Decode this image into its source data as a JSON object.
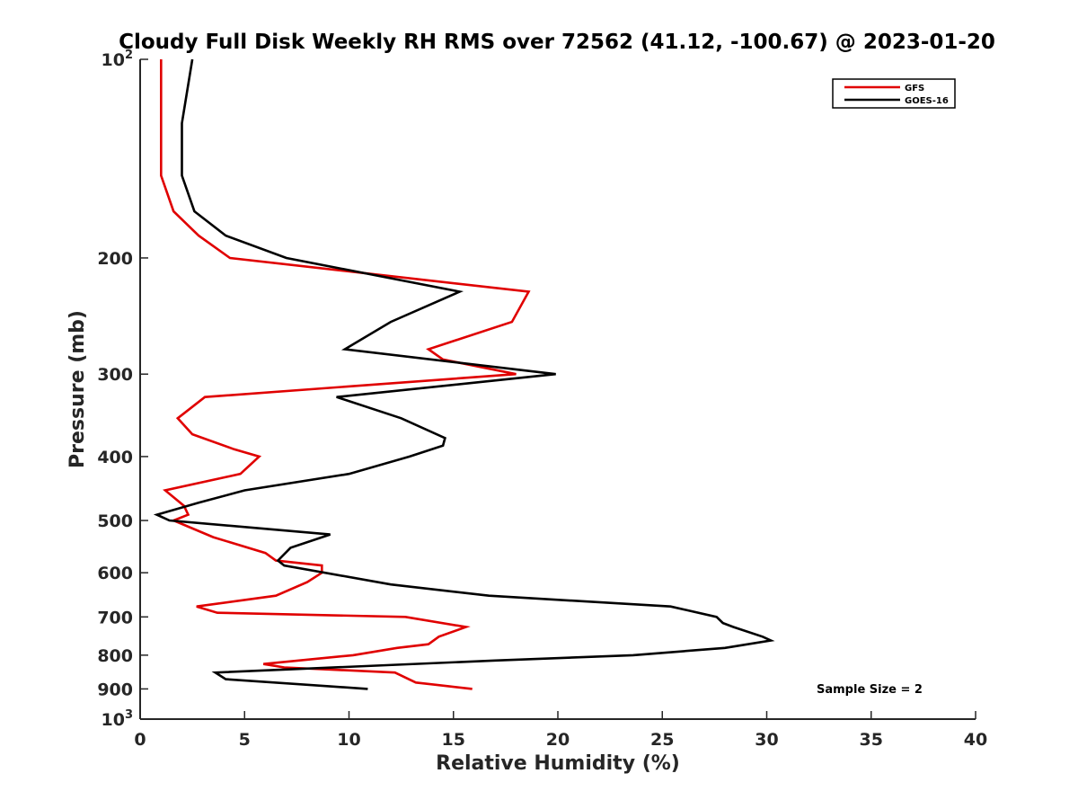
{
  "chart_data": {
    "type": "line",
    "title": "Cloudy Full Disk Weekly RH RMS over 72562 (41.12, -100.67) @ 2023-01-20",
    "xlabel": "Relative Humidity (%)",
    "ylabel": "Pressure (mb)",
    "xlim": [
      0,
      40
    ],
    "ylim": [
      100,
      1000
    ],
    "yscale": "log",
    "y_reversed": true,
    "x_ticks": [
      0,
      5,
      10,
      15,
      20,
      25,
      30,
      35,
      40
    ],
    "x_tick_labels": [
      "0",
      "5",
      "10",
      "15",
      "20",
      "25",
      "30",
      "35",
      "40"
    ],
    "y_ticks": [
      {
        "value": 100,
        "base": "10",
        "exp": "2"
      },
      {
        "value": 200,
        "base": "200",
        "exp": ""
      },
      {
        "value": 300,
        "base": "300",
        "exp": ""
      },
      {
        "value": 400,
        "base": "400",
        "exp": ""
      },
      {
        "value": 500,
        "base": "500",
        "exp": ""
      },
      {
        "value": 600,
        "base": "600",
        "exp": ""
      },
      {
        "value": 700,
        "base": "700",
        "exp": ""
      },
      {
        "value": 800,
        "base": "800",
        "exp": ""
      },
      {
        "value": 900,
        "base": "900",
        "exp": ""
      },
      {
        "value": 1000,
        "base": "10",
        "exp": "3"
      }
    ],
    "grid": false,
    "legend_position": "top-right",
    "series": [
      {
        "name": "GFS",
        "color": "#e00000",
        "points": [
          [
            1.0,
            100
          ],
          [
            1.0,
            125
          ],
          [
            1.0,
            150
          ],
          [
            1.6,
            170
          ],
          [
            2.8,
            185
          ],
          [
            4.3,
            200
          ],
          [
            18.6,
            225
          ],
          [
            17.8,
            250
          ],
          [
            13.8,
            275
          ],
          [
            14.5,
            285
          ],
          [
            18.0,
            300
          ],
          [
            3.1,
            325
          ],
          [
            1.8,
            350
          ],
          [
            2.5,
            370
          ],
          [
            4.5,
            390
          ],
          [
            5.7,
            400
          ],
          [
            4.8,
            425
          ],
          [
            1.2,
            450
          ],
          [
            2.1,
            475
          ],
          [
            2.3,
            490
          ],
          [
            1.6,
            500
          ],
          [
            3.5,
            530
          ],
          [
            6.0,
            560
          ],
          [
            6.5,
            575
          ],
          [
            8.7,
            585
          ],
          [
            8.7,
            600
          ],
          [
            8.0,
            620
          ],
          [
            6.5,
            650
          ],
          [
            2.7,
            675
          ],
          [
            3.7,
            690
          ],
          [
            12.7,
            700
          ],
          [
            15.6,
            725
          ],
          [
            14.3,
            750
          ],
          [
            13.8,
            770
          ],
          [
            12.3,
            780
          ],
          [
            10.2,
            800
          ],
          [
            5.9,
            825
          ],
          [
            6.9,
            835
          ],
          [
            12.2,
            850
          ],
          [
            13.2,
            880
          ],
          [
            15.9,
            900
          ]
        ]
      },
      {
        "name": "GOES-16",
        "color": "#000000",
        "points": [
          [
            2.5,
            100
          ],
          [
            2.0,
            125
          ],
          [
            2.0,
            150
          ],
          [
            2.6,
            170
          ],
          [
            4.1,
            185
          ],
          [
            7.0,
            200
          ],
          [
            15.3,
            225
          ],
          [
            12.0,
            250
          ],
          [
            9.8,
            275
          ],
          [
            19.9,
            300
          ],
          [
            9.4,
            325
          ],
          [
            12.5,
            350
          ],
          [
            14.6,
            375
          ],
          [
            14.5,
            385
          ],
          [
            12.9,
            400
          ],
          [
            10.0,
            425
          ],
          [
            5.0,
            450
          ],
          [
            2.8,
            470
          ],
          [
            0.8,
            490
          ],
          [
            1.4,
            500
          ],
          [
            9.1,
            525
          ],
          [
            7.2,
            550
          ],
          [
            6.6,
            575
          ],
          [
            6.9,
            585
          ],
          [
            12.0,
            625
          ],
          [
            16.7,
            650
          ],
          [
            25.4,
            675
          ],
          [
            27.6,
            700
          ],
          [
            27.9,
            715
          ],
          [
            28.4,
            725
          ],
          [
            29.8,
            750
          ],
          [
            30.2,
            760
          ],
          [
            28.0,
            780
          ],
          [
            23.6,
            800
          ],
          [
            17.0,
            815
          ],
          [
            3.6,
            850
          ],
          [
            4.1,
            870
          ],
          [
            10.9,
            900
          ]
        ]
      }
    ],
    "annotations": [
      "Sample Size = 2"
    ]
  }
}
